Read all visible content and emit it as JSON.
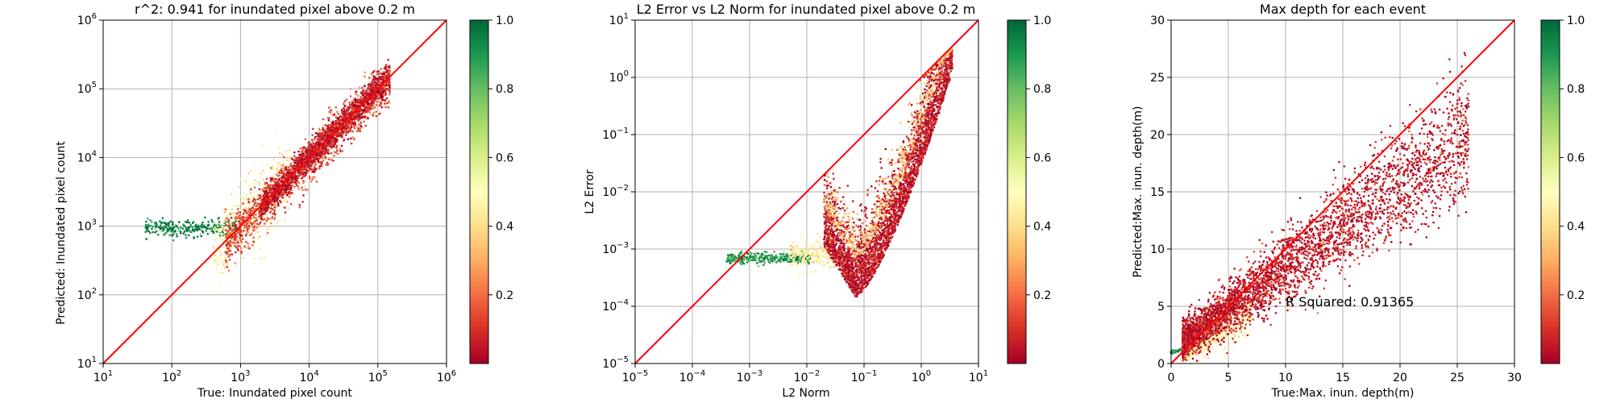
{
  "colors": {
    "identity_line": "#ff0000",
    "grid": "#b0b0b0",
    "colormap": "RdYlGn"
  },
  "chart_data": [
    {
      "type": "scatter",
      "title": "r^2: 0.941 for inundated pixel above 0.2 m",
      "xlabel": "True: Inundated pixel count",
      "ylabel": "Predicted: Inundated pixel count",
      "xscale": "log",
      "yscale": "log",
      "xlim": [
        10,
        1000000
      ],
      "ylim": [
        10,
        1000000
      ],
      "x_ticks": [
        {
          "base": "10",
          "exp": "1"
        },
        {
          "base": "10",
          "exp": "2"
        },
        {
          "base": "10",
          "exp": "3"
        },
        {
          "base": "10",
          "exp": "4"
        },
        {
          "base": "10",
          "exp": "5"
        },
        {
          "base": "10",
          "exp": "6"
        }
      ],
      "y_ticks": [
        {
          "base": "10",
          "exp": "1"
        },
        {
          "base": "10",
          "exp": "2"
        },
        {
          "base": "10",
          "exp": "3"
        },
        {
          "base": "10",
          "exp": "4"
        },
        {
          "base": "10",
          "exp": "5"
        },
        {
          "base": "10",
          "exp": "6"
        }
      ],
      "grid": true,
      "identity_line": true,
      "colorbar": {
        "min": 0,
        "max": 1.0,
        "ticks": [
          "0.2",
          "0.4",
          "0.6",
          "0.8",
          "1.0"
        ],
        "colormap": "RdYlGn"
      },
      "point_groups": [
        {
          "x_range": [
            40,
            900
          ],
          "y_center": 950,
          "spread": 0.06,
          "color_value": 0.95,
          "count": 260
        },
        {
          "x_range": [
            400,
            6000
          ],
          "y_range_rel": [
            0.6,
            1.6
          ],
          "spread": 0.25,
          "color_value": 0.45,
          "count": 420
        },
        {
          "x_range": [
            600,
            150000
          ],
          "y_range_rel": [
            0.55,
            1.4
          ],
          "spread": 0.12,
          "color_value": 0.15,
          "count": 1400
        },
        {
          "x_range": [
            2000,
            150000
          ],
          "y_range_rel": [
            0.75,
            1.25
          ],
          "spread": 0.08,
          "color_value": 0.05,
          "count": 1400
        }
      ]
    },
    {
      "type": "scatter",
      "title": "L2 Error vs L2 Norm for inundated pixel above 0.2 m",
      "xlabel": "L2 Norm",
      "ylabel": "L2 Error",
      "xscale": "log",
      "yscale": "log",
      "xlim": [
        1e-05,
        10
      ],
      "ylim": [
        1e-05,
        10
      ],
      "x_ticks": [
        {
          "base": "10",
          "exp": "−5"
        },
        {
          "base": "10",
          "exp": "−4"
        },
        {
          "base": "10",
          "exp": "−3"
        },
        {
          "base": "10",
          "exp": "−2"
        },
        {
          "base": "10",
          "exp": "−1"
        },
        {
          "base": "10",
          "exp": "0"
        },
        {
          "base": "10",
          "exp": "1"
        }
      ],
      "y_ticks": [
        {
          "base": "10",
          "exp": "−5"
        },
        {
          "base": "10",
          "exp": "−4"
        },
        {
          "base": "10",
          "exp": "−3"
        },
        {
          "base": "10",
          "exp": "−2"
        },
        {
          "base": "10",
          "exp": "−1"
        },
        {
          "base": "10",
          "exp": "0"
        },
        {
          "base": "10",
          "exp": "1"
        }
      ],
      "grid": true,
      "identity_line": true,
      "colorbar": {
        "min": 0,
        "max": 1.0,
        "ticks": [
          "0.2",
          "0.4",
          "0.6",
          "0.8",
          "1.0"
        ],
        "colormap": "RdYlGn"
      },
      "point_groups": [
        {
          "x_range": [
            0.0004,
            0.012
          ],
          "y_center": 0.0007,
          "spread": 0.05,
          "color_value": 0.9,
          "count": 300
        },
        {
          "x_range": [
            0.005,
            0.03
          ],
          "y_center": 0.0008,
          "spread": 0.12,
          "color_value": 0.45,
          "count": 220
        },
        {
          "curve": "lower",
          "x_range": [
            0.02,
            3.5
          ],
          "color_value": 0.05,
          "count": 3200
        },
        {
          "curve": "upper",
          "x_range": [
            0.02,
            3.5
          ],
          "color_value": 0.35,
          "count": 500
        }
      ]
    },
    {
      "type": "scatter",
      "title": "Max depth for each event",
      "xlabel": "True:Max. inun. depth(m)",
      "ylabel": "Predicted:Max. inun. depth(m)",
      "xscale": "linear",
      "yscale": "linear",
      "xlim": [
        0,
        30
      ],
      "ylim": [
        0,
        30
      ],
      "x_ticks": [
        "0",
        "5",
        "10",
        "15",
        "20",
        "25",
        "30"
      ],
      "y_ticks": [
        "0",
        "5",
        "10",
        "15",
        "20",
        "25",
        "30"
      ],
      "grid": true,
      "identity_line": true,
      "annotation": "R Squared: 0.91365",
      "colorbar": {
        "min": 0,
        "max": 1.0,
        "ticks": [
          "0.2",
          "0.4",
          "0.6",
          "0.8",
          "1.0"
        ],
        "colormap": "RdYlGn"
      },
      "point_groups": [
        {
          "x_range": [
            0,
            2
          ],
          "slope": 0.2,
          "intercept": 1.0,
          "spread": 0.15,
          "color_value": 0.9,
          "count": 120
        },
        {
          "x_range": [
            1,
            7
          ],
          "slope": 0.55,
          "intercept": 0.3,
          "spread": 0.8,
          "color_value": 0.45,
          "count": 600
        },
        {
          "x_range": [
            1,
            26
          ],
          "slope": 0.72,
          "intercept": 1.2,
          "spread": 1.3,
          "color_value": 0.05,
          "count": 3800
        }
      ]
    }
  ]
}
